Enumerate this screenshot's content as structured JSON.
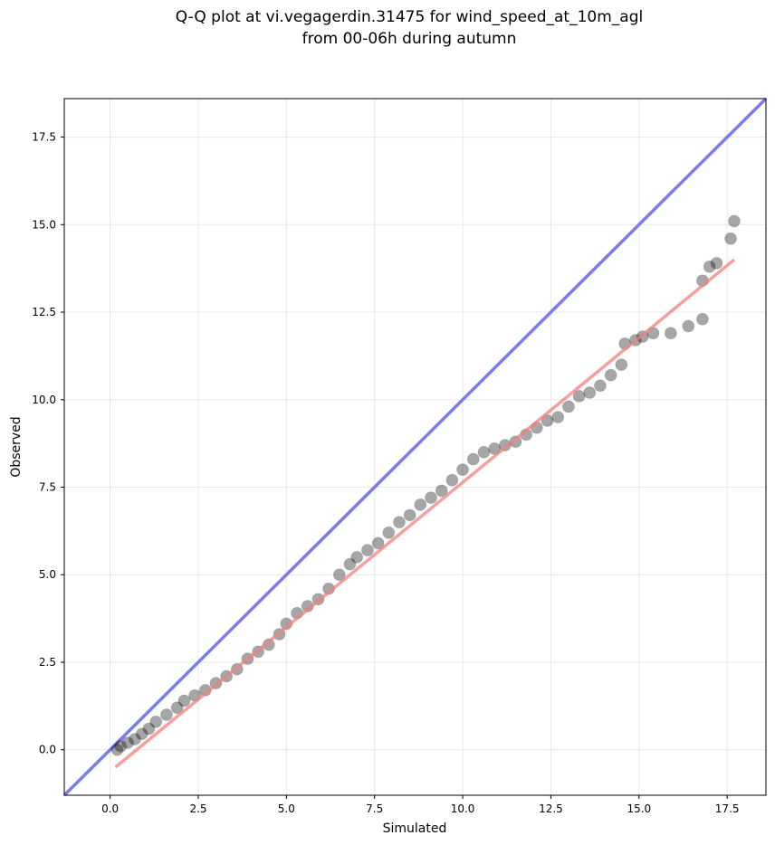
{
  "chart_data": {
    "type": "scatter",
    "title": [
      "Q-Q plot at vi.vegagerdin.31475 for wind_speed_at_10m_agl",
      "from 00-06h during autumn"
    ],
    "xlabel": "Simulated",
    "ylabel": "Observed",
    "xlim": [
      -1.3,
      18.6
    ],
    "ylim": [
      -1.3,
      18.6
    ],
    "xticks": [
      0.0,
      2.5,
      5.0,
      7.5,
      10.0,
      12.5,
      15.0,
      17.5
    ],
    "xtick_labels": [
      "0.0",
      "2.5",
      "5.0",
      "7.5",
      "10.0",
      "12.5",
      "15.0",
      "17.5"
    ],
    "yticks": [
      0.0,
      2.5,
      5.0,
      7.5,
      10.0,
      12.5,
      15.0,
      17.5
    ],
    "ytick_labels": [
      "0.0",
      "2.5",
      "5.0",
      "7.5",
      "10.0",
      "12.5",
      "15.0",
      "17.5"
    ],
    "grid": true,
    "colors": {
      "points": "#000000",
      "fit_line": "#f08080",
      "identity_line": "#7b7bef",
      "grid": "#d9d9d9"
    },
    "series": [
      {
        "kind": "points",
        "x": [
          0.2,
          0.3,
          0.5,
          0.7,
          0.9,
          1.1,
          1.3,
          1.6,
          1.9,
          2.1,
          2.4,
          2.7,
          3.0,
          3.3,
          3.6,
          3.9,
          4.2,
          4.5,
          4.8,
          5.0,
          5.3,
          5.6,
          5.9,
          6.2,
          6.5,
          6.8,
          7.0,
          7.3,
          7.6,
          7.9,
          8.2,
          8.5,
          8.8,
          9.1,
          9.4,
          9.7,
          10.0,
          10.3,
          10.6,
          10.9,
          11.2,
          11.5,
          11.8,
          12.1,
          12.4,
          12.7,
          13.0,
          13.3,
          13.6,
          13.9,
          14.2,
          14.5,
          14.6,
          14.9,
          15.1,
          15.4,
          15.9,
          16.4,
          16.8,
          16.8,
          17.0,
          17.2,
          17.6,
          17.7
        ],
        "y": [
          0.0,
          0.1,
          0.2,
          0.3,
          0.45,
          0.6,
          0.8,
          1.0,
          1.2,
          1.4,
          1.55,
          1.7,
          1.9,
          2.1,
          2.3,
          2.6,
          2.8,
          3.0,
          3.3,
          3.6,
          3.9,
          4.1,
          4.3,
          4.6,
          5.0,
          5.3,
          5.5,
          5.7,
          5.9,
          6.2,
          6.5,
          6.7,
          7.0,
          7.2,
          7.4,
          7.7,
          8.0,
          8.3,
          8.5,
          8.6,
          8.7,
          8.8,
          9.0,
          9.2,
          9.4,
          9.5,
          9.8,
          10.1,
          10.2,
          10.4,
          10.7,
          11.0,
          11.6,
          11.7,
          11.8,
          11.9,
          11.9,
          12.1,
          12.3,
          13.4,
          13.8,
          13.9,
          14.6,
          15.1
        ]
      },
      {
        "kind": "fit-line",
        "x": [
          0.15,
          17.7
        ],
        "y": [
          -0.5,
          14.0
        ]
      },
      {
        "kind": "identity-line",
        "x": [
          -1.3,
          18.6
        ],
        "y": [
          -1.3,
          18.6
        ]
      }
    ]
  }
}
